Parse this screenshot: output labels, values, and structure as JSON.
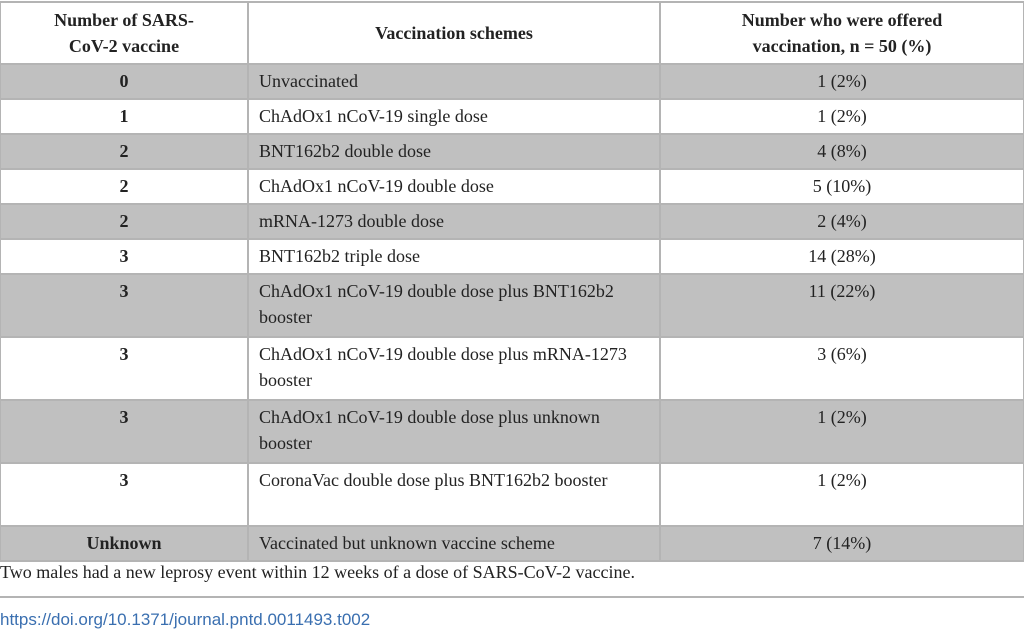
{
  "headers": [
    "Number of SARS-CoV-2 vaccine",
    "Vaccination schemes",
    "Number who were offered vaccination, n = 50 (%)"
  ],
  "rows": [
    {
      "n": "0",
      "scheme": "Unvaccinated",
      "count": "1 (2%)"
    },
    {
      "n": "1",
      "scheme": "ChAdOx1 nCoV-19 single dose",
      "count": "1 (2%)"
    },
    {
      "n": "2",
      "scheme": "BNT162b2 double dose",
      "count": "4 (8%)"
    },
    {
      "n": "2",
      "scheme": "ChAdOx1 nCoV-19 double dose",
      "count": "5 (10%)"
    },
    {
      "n": "2",
      "scheme": "mRNA-1273 double dose",
      "count": "2 (4%)"
    },
    {
      "n": "3",
      "scheme": "BNT162b2 triple dose",
      "count": "14 (28%)"
    },
    {
      "n": "3",
      "scheme": "ChAdOx1 nCoV-19 double dose plus BNT162b2 booster",
      "count": "11 (22%)"
    },
    {
      "n": "3",
      "scheme": "ChAdOx1 nCoV-19 double dose plus mRNA-1273 booster",
      "count": "3 (6%)"
    },
    {
      "n": "3",
      "scheme": "ChAdOx1 nCoV-19 double dose plus unknown booster",
      "count": "1 (2%)"
    },
    {
      "n": "3",
      "scheme": "CoronaVac double dose plus BNT162b2 booster",
      "count": "1 (2%)"
    },
    {
      "n": "Unknown",
      "scheme": "Vaccinated but unknown vaccine scheme",
      "count": "7 (14%)"
    }
  ],
  "footnote": "Two males had a new leprosy event within 12 weeks of a dose of SARS-CoV-2 vaccine.",
  "doi": "https://doi.org/10.1371/journal.pntd.0011493.t002"
}
